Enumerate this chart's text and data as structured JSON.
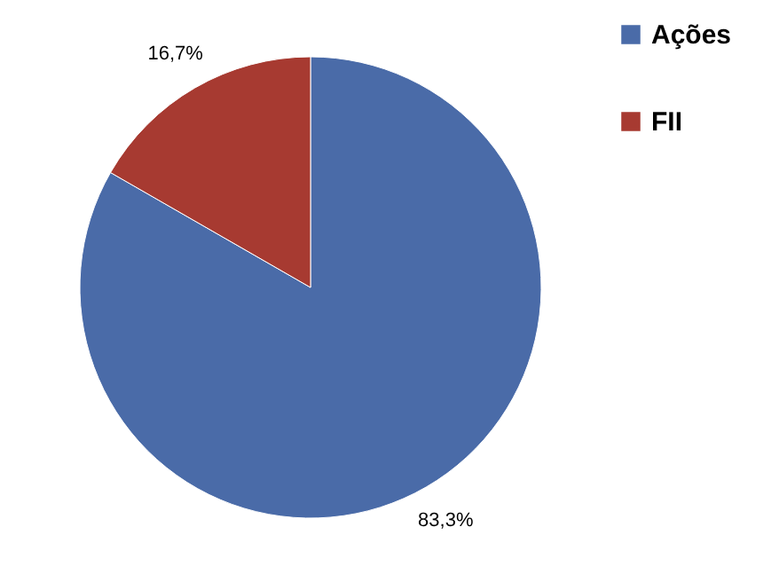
{
  "chart_data": {
    "type": "pie",
    "categories": [
      "Ações",
      "FII"
    ],
    "values": [
      83.3,
      16.7
    ],
    "colors": [
      "#4a6ba8",
      "#a73a31"
    ],
    "value_labels": [
      "83,3%",
      "16,7%"
    ],
    "legend": "right"
  }
}
